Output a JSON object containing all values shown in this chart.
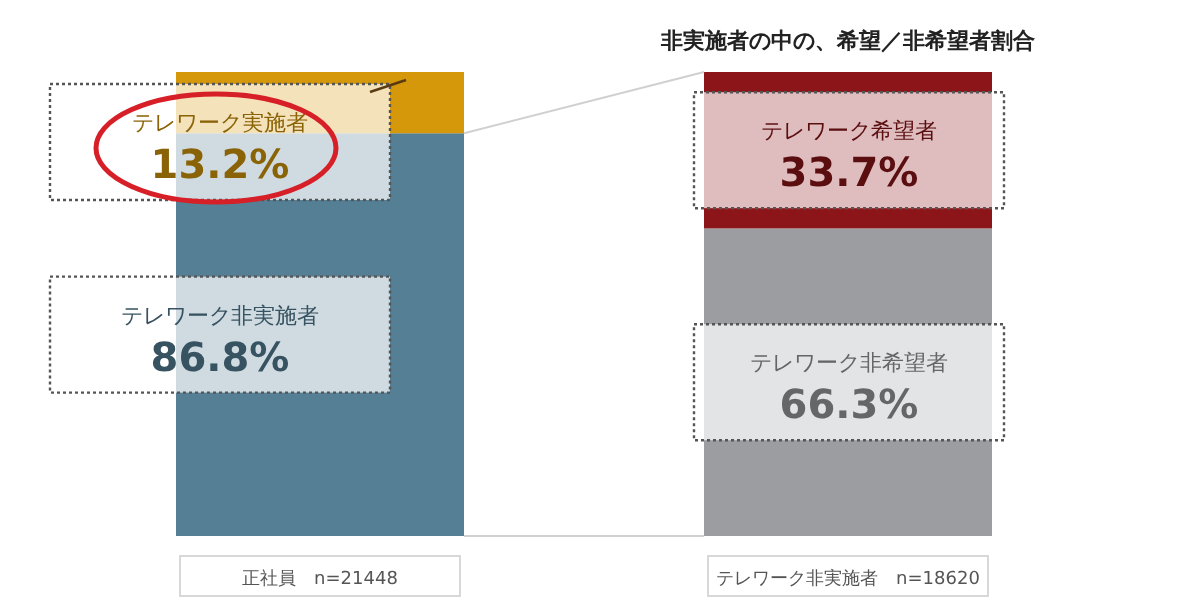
{
  "chart_data": {
    "type": "bar",
    "stacked": true,
    "title": "非実施者の中の、希望／非希望者割合",
    "categories": [
      "正社員　n=21448",
      "テレワーク非実施者　n=18620"
    ],
    "ylim": [
      0,
      100
    ],
    "tick_labels": "x",
    "series": [
      {
        "name": "テレワーク非実施者",
        "color": "#557f95",
        "values": [
          86.8,
          null
        ],
        "value_labels": [
          "86.8%",
          null
        ]
      },
      {
        "name": "テレワーク実施者",
        "color": "#d4980a",
        "values": [
          13.2,
          null
        ],
        "value_labels": [
          "13.2%",
          null
        ]
      },
      {
        "name": "テレワーク非希望者",
        "color": "#9c9da0",
        "values": [
          null,
          66.3
        ],
        "value_labels": [
          null,
          "66.3%"
        ]
      },
      {
        "name": "テレワーク希望者",
        "color": "#8b1519",
        "values": [
          null,
          33.7
        ],
        "value_labels": [
          null,
          "33.7%"
        ]
      }
    ]
  }
}
